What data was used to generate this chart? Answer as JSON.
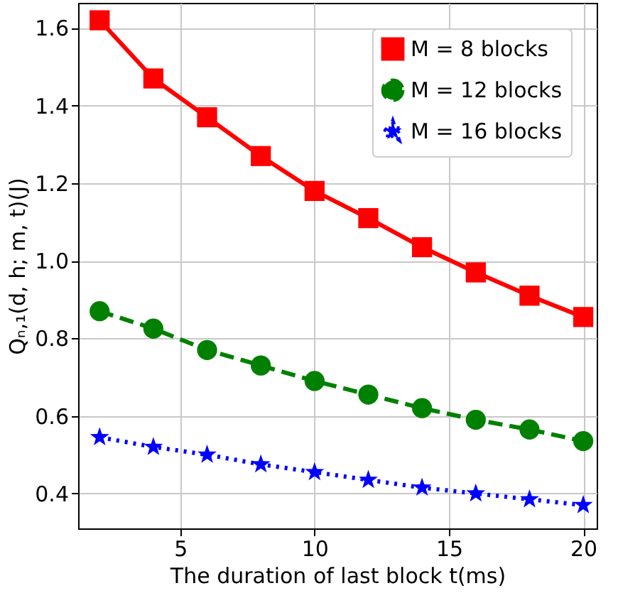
{
  "chart_data": {
    "type": "line",
    "xlabel": "The duration of last block t(ms)",
    "ylabel": "Qₙ,₁(d, h; m, t)(J)",
    "x": [
      2,
      4,
      6,
      8,
      10,
      12,
      14,
      16,
      18,
      20
    ],
    "series": [
      {
        "name": "M = 8 blocks",
        "color": "#ff0000",
        "marker": "square",
        "line_style": "solid",
        "values": [
          1.62,
          1.47,
          1.37,
          1.27,
          1.18,
          1.11,
          1.035,
          0.97,
          0.91,
          0.855
        ]
      },
      {
        "name": "M = 12 blocks",
        "color": "#008000",
        "marker": "circle",
        "line_style": "dashed",
        "values": [
          0.87,
          0.825,
          0.77,
          0.73,
          0.69,
          0.655,
          0.62,
          0.59,
          0.565,
          0.535
        ]
      },
      {
        "name": "M = 16 blocks",
        "color": "#0000ff",
        "marker": "star",
        "line_style": "dotted",
        "values": [
          0.545,
          0.52,
          0.5,
          0.475,
          0.455,
          0.435,
          0.415,
          0.4,
          0.385,
          0.37
        ]
      }
    ],
    "xlim": [
      1.2,
      20.5
    ],
    "xticks": [
      5,
      10,
      15,
      20
    ],
    "ylim": [
      0.31,
      1.665
    ],
    "yticks": [
      0.4,
      0.6,
      0.8,
      {
        "value": 1,
        "label": "1.0"
      },
      1.2,
      1.4,
      1.6
    ],
    "grid": true,
    "legend": "top right"
  }
}
